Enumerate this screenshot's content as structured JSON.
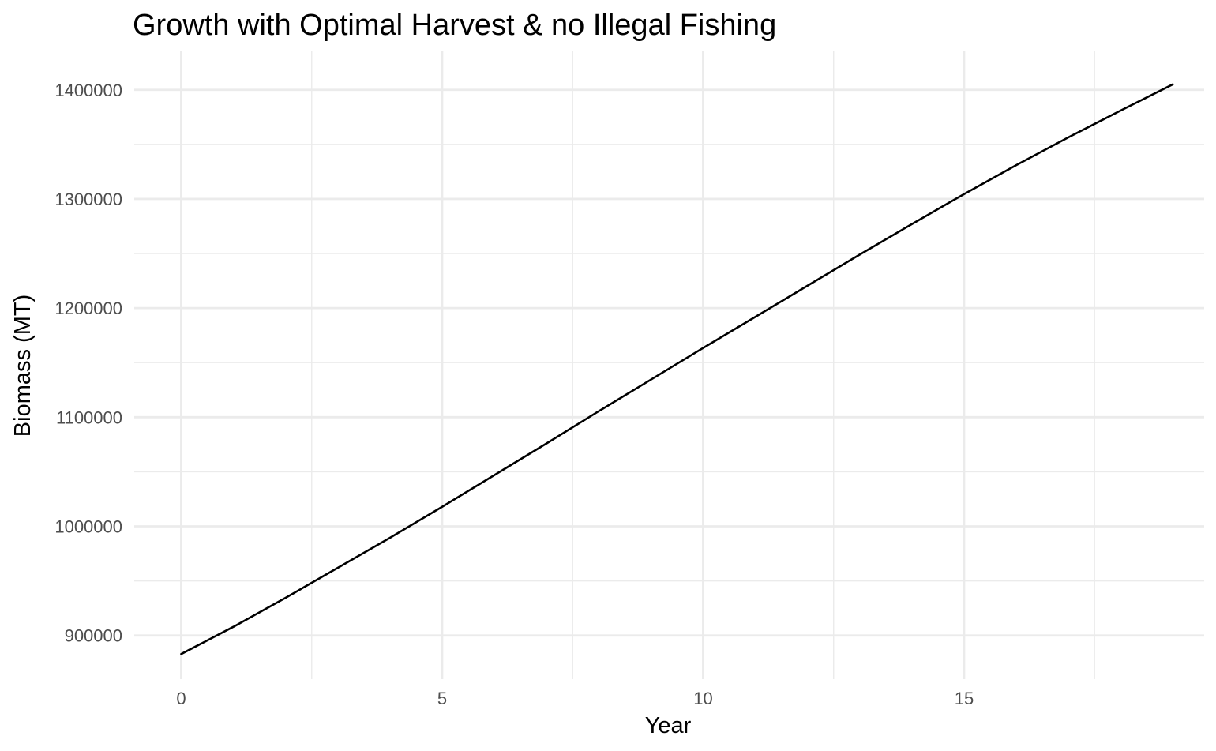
{
  "chart_data": {
    "type": "line",
    "title": "Growth with Optimal Harvest & no Illegal Fishing",
    "xlabel": "Year",
    "ylabel": "Biomass (MT)",
    "xlim": [
      -0.9,
      19.6
    ],
    "ylim": [
      860000,
      1436000
    ],
    "x_ticks": [
      0,
      5,
      10,
      15
    ],
    "x_tick_labels": [
      "0",
      "5",
      "10",
      "15"
    ],
    "y_ticks": [
      900000,
      1000000,
      1100000,
      1200000,
      1300000,
      1400000
    ],
    "y_tick_labels": [
      "900000",
      "1000000",
      "1100000",
      "1200000",
      "1300000",
      "1400000"
    ],
    "grid": true,
    "legend": "none",
    "line_color": "#000000",
    "series": [
      {
        "x": [
          0,
          1,
          2,
          3,
          4,
          5,
          6,
          7,
          8,
          9,
          10,
          11,
          12,
          13,
          14,
          15,
          16,
          17,
          18,
          19
        ],
        "values": [
          883000,
          908000,
          934500,
          962000,
          989500,
          1018000,
          1047000,
          1076000,
          1105500,
          1134500,
          1163500,
          1192000,
          1220500,
          1249000,
          1277000,
          1304500,
          1331000,
          1356500,
          1381000,
          1405000
        ]
      }
    ]
  }
}
